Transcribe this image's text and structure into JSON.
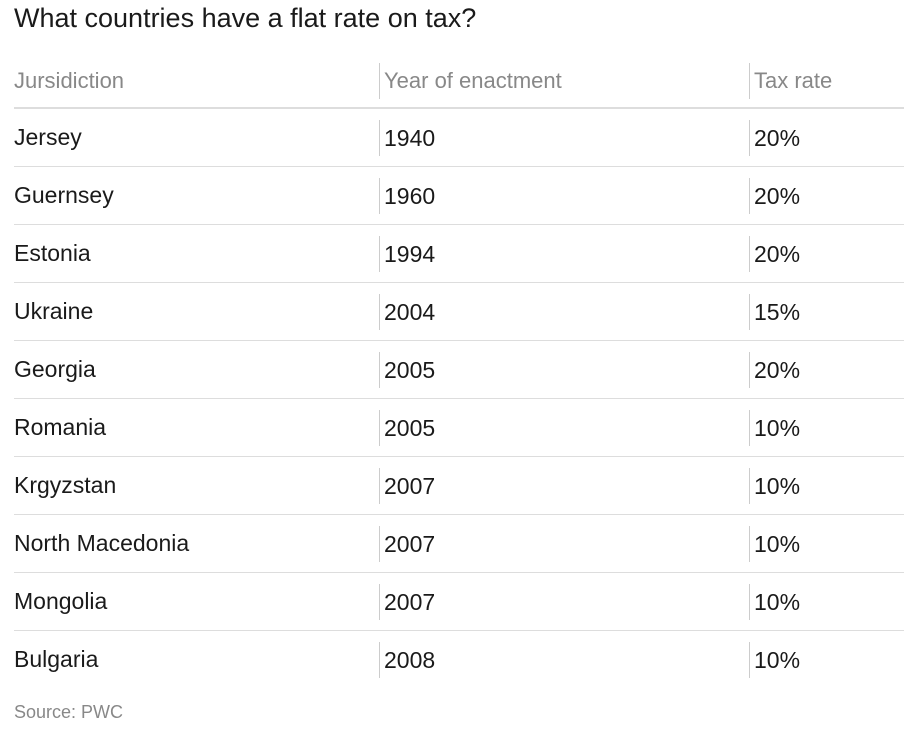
{
  "title": "What countries have a flat rate on tax?",
  "chart_data": {
    "type": "table",
    "title": "What countries have a flat rate on tax?",
    "columns": [
      "Jursidiction",
      "Year of enactment",
      "Tax rate"
    ],
    "rows": [
      [
        "Jersey",
        "1940",
        "20%"
      ],
      [
        "Guernsey",
        "1960",
        "20%"
      ],
      [
        "Estonia",
        "1994",
        "20%"
      ],
      [
        "Ukraine",
        "2004",
        "15%"
      ],
      [
        "Georgia",
        "2005",
        "20%"
      ],
      [
        "Romania",
        "2005",
        "10%"
      ],
      [
        "Krgyzstan",
        "2007",
        "10%"
      ],
      [
        "North Macedonia",
        "2007",
        "10%"
      ],
      [
        "Mongolia",
        "2007",
        "10%"
      ],
      [
        "Bulgaria",
        "2008",
        "10%"
      ]
    ],
    "source": "Source: PWC"
  }
}
